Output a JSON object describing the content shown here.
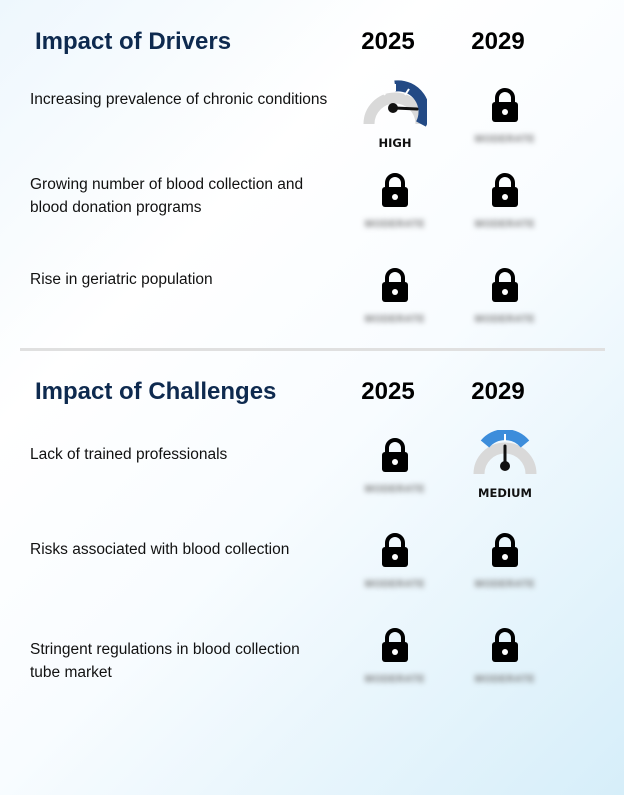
{
  "drivers": {
    "title": "Impact of Drivers",
    "year1": "2025",
    "year2": "2029",
    "rows": [
      {
        "label": "Increasing prevalence of chronic conditions",
        "y2025": {
          "type": "gauge",
          "level": "HIGH",
          "color": "#234a85"
        },
        "y2029": {
          "type": "lock",
          "blurred_text": "MODERATE"
        }
      },
      {
        "label": "Growing number of blood collection and blood donation programs",
        "y2025": {
          "type": "lock",
          "blurred_text": "MODERATE"
        },
        "y2029": {
          "type": "lock",
          "blurred_text": "MODERATE"
        }
      },
      {
        "label": "Rise in geriatric population",
        "y2025": {
          "type": "lock",
          "blurred_text": "MODERATE"
        },
        "y2029": {
          "type": "lock",
          "blurred_text": "MODERATE"
        }
      }
    ]
  },
  "challenges": {
    "title": "Impact of Challenges",
    "year1": "2025",
    "year2": "2029",
    "rows": [
      {
        "label": "Lack of trained professionals",
        "y2025": {
          "type": "lock",
          "blurred_text": "MODERATE"
        },
        "y2029": {
          "type": "gauge",
          "level": "MEDIUM",
          "color": "#3c8ddb"
        }
      },
      {
        "label": "Risks associated with blood collection",
        "y2025": {
          "type": "lock",
          "blurred_text": "MODERATE"
        },
        "y2029": {
          "type": "lock",
          "blurred_text": "MODERATE"
        }
      },
      {
        "label": "Stringent regulations in blood collection tube market",
        "y2025": {
          "type": "lock",
          "blurred_text": "MODERATE"
        },
        "y2029": {
          "type": "lock",
          "blurred_text": "MODERATE"
        }
      }
    ]
  }
}
